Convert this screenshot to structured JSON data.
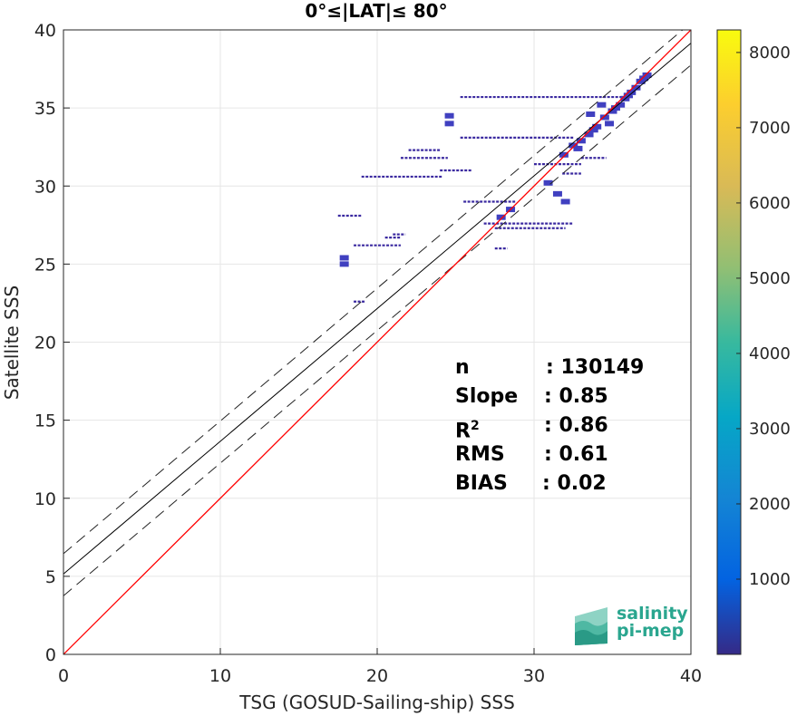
{
  "chart_data": {
    "type": "scatter",
    "title": "0°≤|LAT|≤ 80°",
    "xlabel": "TSG (GOSUD-Sailing-ship) SSS",
    "ylabel": "Satellite SSS",
    "xlim": [
      0,
      40
    ],
    "ylim": [
      0,
      40
    ],
    "xticks": [
      "0",
      "10",
      "20",
      "30",
      "40"
    ],
    "yticks": [
      "0",
      "5",
      "10",
      "15",
      "20",
      "25",
      "30",
      "35",
      "40"
    ],
    "grid": true,
    "colorbar": {
      "range": [
        0,
        8300
      ],
      "ticks": [
        "1000",
        "2000",
        "3000",
        "4000",
        "5000",
        "6000",
        "7000",
        "8000"
      ],
      "colormap": "parula"
    },
    "lines": {
      "identity": {
        "slope": 1,
        "intercept": 0,
        "color": "#ff0000"
      },
      "regression": {
        "slope": 0.85,
        "intercept": 5.15,
        "color": "#000000"
      },
      "upper_bound": {
        "slope": 0.85,
        "intercept": 6.45,
        "style": "dashed"
      },
      "lower_bound": {
        "slope": 0.85,
        "intercept": 3.75,
        "style": "dashed"
      }
    },
    "density_segments": [
      {
        "x1": 25.3,
        "x2": 36.3,
        "y": 35.7
      },
      {
        "x1": 25.3,
        "x2": 32.5,
        "y": 33.1
      },
      {
        "x1": 19.0,
        "x2": 24.2,
        "y": 30.6
      },
      {
        "x1": 17.5,
        "x2": 19.0,
        "y": 28.1
      },
      {
        "x1": 18.5,
        "x2": 21.5,
        "y": 26.2
      },
      {
        "x1": 20.5,
        "x2": 21.5,
        "y": 26.7
      },
      {
        "x1": 21.0,
        "x2": 21.8,
        "y": 26.9
      },
      {
        "x1": 25.5,
        "x2": 28.8,
        "y": 29.0
      },
      {
        "x1": 26.8,
        "x2": 32.5,
        "y": 27.6
      },
      {
        "x1": 27.5,
        "x2": 32.0,
        "y": 27.3
      },
      {
        "x1": 27.5,
        "x2": 28.3,
        "y": 26.0
      },
      {
        "x1": 24.0,
        "x2": 26.0,
        "y": 31.0
      },
      {
        "x1": 21.5,
        "x2": 24.5,
        "y": 31.8
      },
      {
        "x1": 22.0,
        "x2": 24.0,
        "y": 32.3
      },
      {
        "x1": 33.0,
        "x2": 34.6,
        "y": 31.8
      },
      {
        "x1": 30.0,
        "x2": 33.0,
        "y": 31.4
      },
      {
        "x1": 31.8,
        "x2": 33.0,
        "y": 30.8
      },
      {
        "x1": 18.5,
        "x2": 19.2,
        "y": 22.6
      }
    ],
    "density_points": [
      {
        "x": 33.0,
        "y": 32.9
      },
      {
        "x": 34.0,
        "y": 33.8
      },
      {
        "x": 35.0,
        "y": 34.8
      },
      {
        "x": 35.8,
        "y": 35.6
      },
      {
        "x": 36.5,
        "y": 36.3
      },
      {
        "x": 37.0,
        "y": 36.9
      },
      {
        "x": 36.0,
        "y": 35.8
      },
      {
        "x": 34.5,
        "y": 34.4
      },
      {
        "x": 33.5,
        "y": 33.3
      },
      {
        "x": 32.5,
        "y": 32.6
      },
      {
        "x": 36.8,
        "y": 36.7
      },
      {
        "x": 37.2,
        "y": 37.1
      },
      {
        "x": 35.5,
        "y": 35.2
      },
      {
        "x": 34.8,
        "y": 34.0
      },
      {
        "x": 33.8,
        "y": 33.6
      },
      {
        "x": 32.8,
        "y": 32.4
      },
      {
        "x": 31.9,
        "y": 32.0
      },
      {
        "x": 28.5,
        "y": 28.5
      },
      {
        "x": 27.9,
        "y": 28.0
      },
      {
        "x": 32.0,
        "y": 29.0
      },
      {
        "x": 31.5,
        "y": 29.5
      },
      {
        "x": 30.9,
        "y": 30.2
      },
      {
        "x": 17.9,
        "y": 25.0
      },
      {
        "x": 17.9,
        "y": 25.4
      },
      {
        "x": 24.6,
        "y": 34.0
      },
      {
        "x": 24.6,
        "y": 34.5
      },
      {
        "x": 34.3,
        "y": 35.2
      },
      {
        "x": 33.6,
        "y": 34.6
      },
      {
        "x": 36.2,
        "y": 36.0
      },
      {
        "x": 35.2,
        "y": 35.0
      }
    ]
  },
  "stats": [
    {
      "label": "n",
      "value": ": 130149",
      "cls": "n"
    },
    {
      "label": "Slope",
      "value": ": 0.85",
      "cls": "slope"
    },
    {
      "label": "R",
      "sup": "2",
      "value": ": 0.86",
      "cls": "r2"
    },
    {
      "label": "RMS",
      "value": ": 0.61",
      "cls": "rms"
    },
    {
      "label": "BIAS",
      "value": ": 0.02",
      "cls": "bias"
    }
  ],
  "logo": {
    "line1": "salinity",
    "line2": "pi-mep"
  },
  "colors": {
    "density": "#3b2aa0",
    "dense": "#4040c0",
    "identity": "#ff0000",
    "logo": "#2aa68f"
  }
}
